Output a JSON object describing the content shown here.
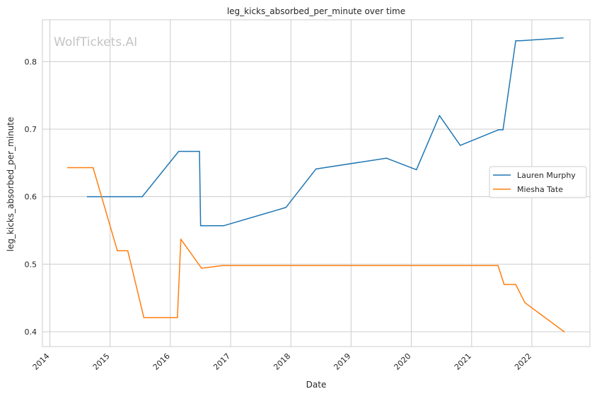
{
  "chart_data": {
    "type": "line",
    "title": "leg_kicks_absorbed_per_minute over time",
    "xlabel": "Date",
    "ylabel": "leg_kicks_absorbed_per_minute",
    "watermark": "WolfTickets.AI",
    "x_ticks": [
      "2014",
      "2015",
      "2016",
      "2017",
      "2018",
      "2019",
      "2020",
      "2021",
      "2022"
    ],
    "y_ticks": [
      "0.4",
      "0.5",
      "0.6",
      "0.7",
      "0.8"
    ],
    "xlim": [
      "2013-11-17",
      "2022-12-19"
    ],
    "ylim": [
      0.378,
      0.862
    ],
    "grid": true,
    "legend_position": "center-right",
    "series": [
      {
        "name": "Lauren Murphy",
        "color": "#1f77b4",
        "points": [
          [
            "2014-08-17",
            0.6
          ],
          [
            "2015-07-15",
            0.6
          ],
          [
            "2016-02-21",
            0.667
          ],
          [
            "2016-06-26",
            0.667
          ],
          [
            "2016-07-03",
            0.557
          ],
          [
            "2016-11-19",
            0.557
          ],
          [
            "2017-12-02",
            0.584
          ],
          [
            "2018-06-02",
            0.641
          ],
          [
            "2019-08-03",
            0.657
          ],
          [
            "2020-02-01",
            0.64
          ],
          [
            "2020-06-20",
            0.72
          ],
          [
            "2020-10-24",
            0.676
          ],
          [
            "2021-06-12",
            0.699
          ],
          [
            "2021-07-10",
            0.699
          ],
          [
            "2021-09-25",
            0.831
          ],
          [
            "2021-10-23",
            0.831
          ],
          [
            "2022-07-09",
            0.835
          ]
        ]
      },
      {
        "name": "Miesha Tate",
        "color": "#ff7f0e",
        "points": [
          [
            "2014-04-19",
            0.643
          ],
          [
            "2014-09-20",
            0.643
          ],
          [
            "2015-02-14",
            0.52
          ],
          [
            "2015-04-18",
            0.52
          ],
          [
            "2015-07-25",
            0.421
          ],
          [
            "2016-02-13",
            0.421
          ],
          [
            "2016-03-05",
            0.537
          ],
          [
            "2016-07-09",
            0.494
          ],
          [
            "2016-11-12",
            0.498
          ],
          [
            "2021-06-10",
            0.498
          ],
          [
            "2021-07-17",
            0.47
          ],
          [
            "2021-09-25",
            0.47
          ],
          [
            "2021-11-20",
            0.443
          ],
          [
            "2022-07-16",
            0.4
          ]
        ]
      }
    ]
  }
}
